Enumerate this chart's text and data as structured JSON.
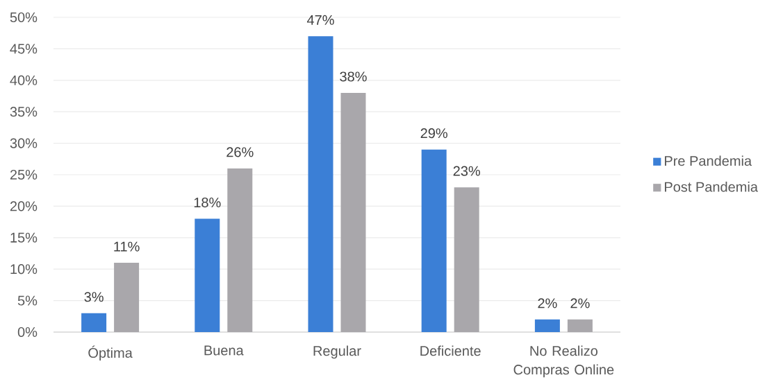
{
  "chart_data": {
    "type": "bar",
    "categories": [
      "Óptima",
      "Buena",
      "Regular",
      "Deficiente",
      "No Realizo Compras Online"
    ],
    "series": [
      {
        "name": "Pre Pandemia",
        "color": "#3b7fd6",
        "values": [
          3,
          18,
          47,
          29,
          2
        ],
        "value_labels": [
          "3%",
          "18%",
          "47%",
          "29%",
          "2%"
        ]
      },
      {
        "name": "Post Pandemia",
        "color": "#a9a7ab",
        "values": [
          11,
          26,
          38,
          23,
          2
        ],
        "value_labels": [
          "11%",
          "26%",
          "38%",
          "23%",
          "2%"
        ]
      }
    ],
    "ylim": [
      0,
      50
    ],
    "yticks": [
      {
        "value": 0,
        "label": "0%"
      },
      {
        "value": 5,
        "label": "5%"
      },
      {
        "value": 10,
        "label": "10%"
      },
      {
        "value": 15,
        "label": "15%"
      },
      {
        "value": 20,
        "label": "20%"
      },
      {
        "value": 25,
        "label": "25%"
      },
      {
        "value": 30,
        "label": "30%"
      },
      {
        "value": 35,
        "label": "35%"
      },
      {
        "value": 40,
        "label": "40%"
      },
      {
        "value": 45,
        "label": "45%"
      },
      {
        "value": 50,
        "label": "50%"
      }
    ],
    "grid": "y",
    "legend": "right"
  }
}
